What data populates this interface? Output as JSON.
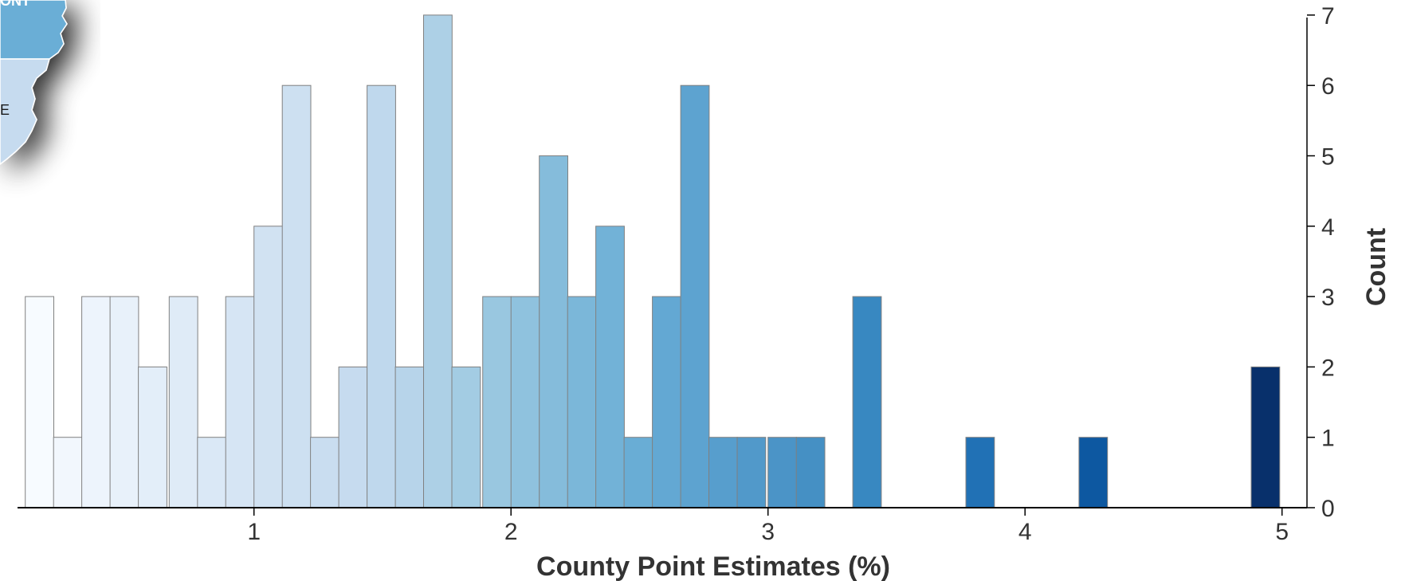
{
  "map_fragment": {
    "label_top": "ONT",
    "label_mid": "E",
    "fill_top": "#6baed6",
    "fill_bottom": "#c6dbef"
  },
  "chart_data": {
    "type": "bar",
    "subtype": "histogram",
    "xlabel": "County Point Estimates (%)",
    "ylabel": "Count",
    "x_ticks": [
      1,
      2,
      3,
      4,
      5
    ],
    "y_ticks": [
      0,
      1,
      2,
      3,
      4,
      5,
      6,
      7
    ],
    "ylim": [
      0,
      7
    ],
    "y_axis_position": "right",
    "grid": false,
    "bin_width": 0.111,
    "bin_starts": [
      0.11,
      0.22,
      0.33,
      0.44,
      0.55,
      0.67,
      0.78,
      0.89,
      1.0,
      1.11,
      1.22,
      1.33,
      1.44,
      1.55,
      1.66,
      1.77,
      1.89,
      2.0,
      2.11,
      2.22,
      2.33,
      2.44,
      2.55,
      2.66,
      2.77,
      2.88,
      3.0,
      3.11,
      3.33,
      3.77,
      4.21,
      4.88
    ],
    "counts": [
      3,
      1,
      3,
      3,
      2,
      3,
      1,
      3,
      4,
      6,
      1,
      2,
      6,
      2,
      7,
      2,
      3,
      3,
      5,
      3,
      4,
      1,
      3,
      6,
      1,
      1,
      1,
      1,
      3,
      1,
      1,
      2
    ],
    "colors": [
      "#f7fbff",
      "#f2f7fd",
      "#edf4fc",
      "#e8f1fa",
      "#e3eef9",
      "#dfebf7",
      "#dae8f6",
      "#d6e5f4",
      "#d1e2f2",
      "#cde0f1",
      "#c9ddf0",
      "#c6dbef",
      "#bfd8ed",
      "#b7d4ea",
      "#add0e6",
      "#a3cce3",
      "#99c7e0",
      "#8fc2de",
      "#85bcdb",
      "#7bb7d9",
      "#72b2d7",
      "#69add5",
      "#63a8d3",
      "#5da3d0",
      "#579ecd",
      "#5199ca",
      "#4b94c7",
      "#4590c4",
      "#3888c1",
      "#2171b5",
      "#0d58a1",
      "#08306b"
    ],
    "bar_stroke": "#808080"
  }
}
